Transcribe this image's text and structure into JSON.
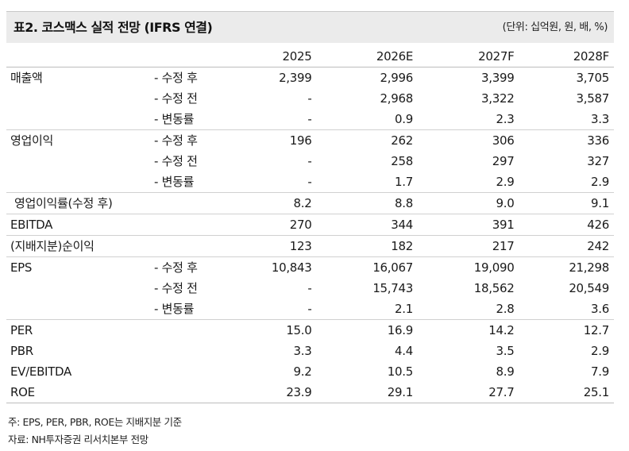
{
  "title": "표2. 코스맥스 실적 전망 (IFRS 연결)",
  "unit": "(단위: 십억원, 원, 배, %)",
  "columns": [
    "2025",
    "2026E",
    "2027F",
    "2028F"
  ],
  "rows": [
    {
      "label": "매출액",
      "sub": "- 수정 후",
      "values": [
        "2,399",
        "2,996",
        "3,399",
        "3,705"
      ]
    },
    {
      "label": "",
      "sub": "- 수정 전",
      "values": [
        "-",
        "2,968",
        "3,322",
        "3,587"
      ]
    },
    {
      "label": "",
      "sub": "- 변동률",
      "values": [
        "-",
        "0.9",
        "2.3",
        "3.3"
      ]
    },
    {
      "label": "영업이익",
      "sub": "- 수정 후",
      "values": [
        "196",
        "262",
        "306",
        "336"
      ]
    },
    {
      "label": "",
      "sub": "- 수정 전",
      "values": [
        "-",
        "258",
        "297",
        "327"
      ]
    },
    {
      "label": "",
      "sub": "- 변동률",
      "values": [
        "-",
        "1.7",
        "2.9",
        "2.9"
      ]
    },
    {
      "label": "영업이익률(수정 후)",
      "sub": "",
      "values": [
        "8.2",
        "8.8",
        "9.0",
        "9.1"
      ]
    },
    {
      "label": "EBITDA",
      "sub": "",
      "values": [
        "270",
        "344",
        "391",
        "426"
      ]
    },
    {
      "label": "(지배지분)순이익",
      "sub": "",
      "values": [
        "123",
        "182",
        "217",
        "242"
      ]
    },
    {
      "label": "EPS",
      "sub": "- 수정 후",
      "values": [
        "10,843",
        "16,067",
        "19,090",
        "21,298"
      ]
    },
    {
      "label": "",
      "sub": "- 수정 전",
      "values": [
        "-",
        "15,743",
        "18,562",
        "20,549"
      ]
    },
    {
      "label": "",
      "sub": "- 변동률",
      "values": [
        "-",
        "2.1",
        "2.8",
        "3.6"
      ]
    },
    {
      "label": "PER",
      "sub": "",
      "values": [
        "15.0",
        "16.9",
        "14.2",
        "12.7"
      ]
    },
    {
      "label": "PBR",
      "sub": "",
      "values": [
        "3.3",
        "4.4",
        "3.5",
        "2.9"
      ]
    },
    {
      "label": "EV/EBITDA",
      "sub": "",
      "values": [
        "9.2",
        "10.5",
        "8.9",
        "7.9"
      ]
    },
    {
      "label": "ROE",
      "sub": "",
      "values": [
        "23.9",
        "29.1",
        "27.7",
        "25.1"
      ]
    }
  ],
  "footnote_1": "주: EPS, PER, PBR, ROE는 지배지분 기준",
  "footnote_2": "자료: NH투자증권 리서치본부 전망"
}
